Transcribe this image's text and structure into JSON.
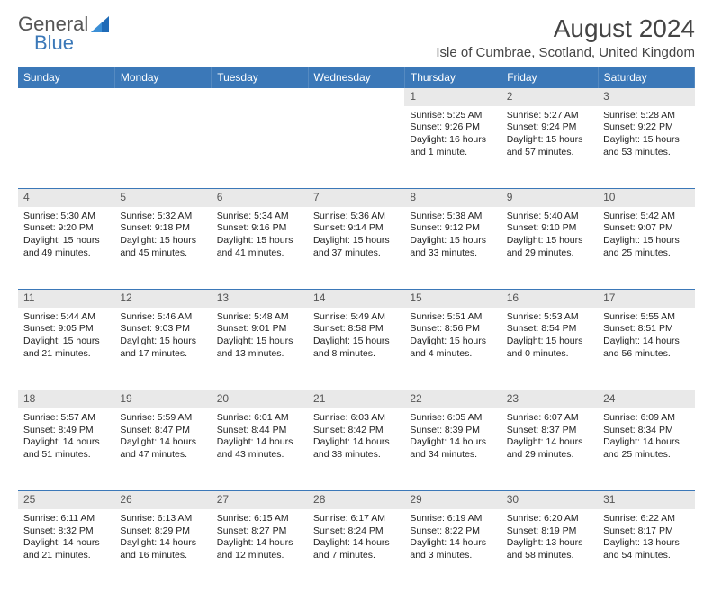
{
  "brand": {
    "name_top": "General",
    "name_bottom": "Blue"
  },
  "title": {
    "month_year": "August 2024",
    "location": "Isle of Cumbrae, Scotland, United Kingdom"
  },
  "colors": {
    "accent": "#3b78b8",
    "header_bg": "#3b78b8",
    "header_text": "#ffffff",
    "daynum_bg": "#e9e9e9",
    "text": "#333333",
    "background": "#ffffff"
  },
  "daynames": [
    "Sunday",
    "Monday",
    "Tuesday",
    "Wednesday",
    "Thursday",
    "Friday",
    "Saturday"
  ],
  "weeks": [
    [
      null,
      null,
      null,
      null,
      {
        "n": "1",
        "sr": "Sunrise: 5:25 AM",
        "ss": "Sunset: 9:26 PM",
        "dl1": "Daylight: 16 hours",
        "dl2": "and 1 minute."
      },
      {
        "n": "2",
        "sr": "Sunrise: 5:27 AM",
        "ss": "Sunset: 9:24 PM",
        "dl1": "Daylight: 15 hours",
        "dl2": "and 57 minutes."
      },
      {
        "n": "3",
        "sr": "Sunrise: 5:28 AM",
        "ss": "Sunset: 9:22 PM",
        "dl1": "Daylight: 15 hours",
        "dl2": "and 53 minutes."
      }
    ],
    [
      {
        "n": "4",
        "sr": "Sunrise: 5:30 AM",
        "ss": "Sunset: 9:20 PM",
        "dl1": "Daylight: 15 hours",
        "dl2": "and 49 minutes."
      },
      {
        "n": "5",
        "sr": "Sunrise: 5:32 AM",
        "ss": "Sunset: 9:18 PM",
        "dl1": "Daylight: 15 hours",
        "dl2": "and 45 minutes."
      },
      {
        "n": "6",
        "sr": "Sunrise: 5:34 AM",
        "ss": "Sunset: 9:16 PM",
        "dl1": "Daylight: 15 hours",
        "dl2": "and 41 minutes."
      },
      {
        "n": "7",
        "sr": "Sunrise: 5:36 AM",
        "ss": "Sunset: 9:14 PM",
        "dl1": "Daylight: 15 hours",
        "dl2": "and 37 minutes."
      },
      {
        "n": "8",
        "sr": "Sunrise: 5:38 AM",
        "ss": "Sunset: 9:12 PM",
        "dl1": "Daylight: 15 hours",
        "dl2": "and 33 minutes."
      },
      {
        "n": "9",
        "sr": "Sunrise: 5:40 AM",
        "ss": "Sunset: 9:10 PM",
        "dl1": "Daylight: 15 hours",
        "dl2": "and 29 minutes."
      },
      {
        "n": "10",
        "sr": "Sunrise: 5:42 AM",
        "ss": "Sunset: 9:07 PM",
        "dl1": "Daylight: 15 hours",
        "dl2": "and 25 minutes."
      }
    ],
    [
      {
        "n": "11",
        "sr": "Sunrise: 5:44 AM",
        "ss": "Sunset: 9:05 PM",
        "dl1": "Daylight: 15 hours",
        "dl2": "and 21 minutes."
      },
      {
        "n": "12",
        "sr": "Sunrise: 5:46 AM",
        "ss": "Sunset: 9:03 PM",
        "dl1": "Daylight: 15 hours",
        "dl2": "and 17 minutes."
      },
      {
        "n": "13",
        "sr": "Sunrise: 5:48 AM",
        "ss": "Sunset: 9:01 PM",
        "dl1": "Daylight: 15 hours",
        "dl2": "and 13 minutes."
      },
      {
        "n": "14",
        "sr": "Sunrise: 5:49 AM",
        "ss": "Sunset: 8:58 PM",
        "dl1": "Daylight: 15 hours",
        "dl2": "and 8 minutes."
      },
      {
        "n": "15",
        "sr": "Sunrise: 5:51 AM",
        "ss": "Sunset: 8:56 PM",
        "dl1": "Daylight: 15 hours",
        "dl2": "and 4 minutes."
      },
      {
        "n": "16",
        "sr": "Sunrise: 5:53 AM",
        "ss": "Sunset: 8:54 PM",
        "dl1": "Daylight: 15 hours",
        "dl2": "and 0 minutes."
      },
      {
        "n": "17",
        "sr": "Sunrise: 5:55 AM",
        "ss": "Sunset: 8:51 PM",
        "dl1": "Daylight: 14 hours",
        "dl2": "and 56 minutes."
      }
    ],
    [
      {
        "n": "18",
        "sr": "Sunrise: 5:57 AM",
        "ss": "Sunset: 8:49 PM",
        "dl1": "Daylight: 14 hours",
        "dl2": "and 51 minutes."
      },
      {
        "n": "19",
        "sr": "Sunrise: 5:59 AM",
        "ss": "Sunset: 8:47 PM",
        "dl1": "Daylight: 14 hours",
        "dl2": "and 47 minutes."
      },
      {
        "n": "20",
        "sr": "Sunrise: 6:01 AM",
        "ss": "Sunset: 8:44 PM",
        "dl1": "Daylight: 14 hours",
        "dl2": "and 43 minutes."
      },
      {
        "n": "21",
        "sr": "Sunrise: 6:03 AM",
        "ss": "Sunset: 8:42 PM",
        "dl1": "Daylight: 14 hours",
        "dl2": "and 38 minutes."
      },
      {
        "n": "22",
        "sr": "Sunrise: 6:05 AM",
        "ss": "Sunset: 8:39 PM",
        "dl1": "Daylight: 14 hours",
        "dl2": "and 34 minutes."
      },
      {
        "n": "23",
        "sr": "Sunrise: 6:07 AM",
        "ss": "Sunset: 8:37 PM",
        "dl1": "Daylight: 14 hours",
        "dl2": "and 29 minutes."
      },
      {
        "n": "24",
        "sr": "Sunrise: 6:09 AM",
        "ss": "Sunset: 8:34 PM",
        "dl1": "Daylight: 14 hours",
        "dl2": "and 25 minutes."
      }
    ],
    [
      {
        "n": "25",
        "sr": "Sunrise: 6:11 AM",
        "ss": "Sunset: 8:32 PM",
        "dl1": "Daylight: 14 hours",
        "dl2": "and 21 minutes."
      },
      {
        "n": "26",
        "sr": "Sunrise: 6:13 AM",
        "ss": "Sunset: 8:29 PM",
        "dl1": "Daylight: 14 hours",
        "dl2": "and 16 minutes."
      },
      {
        "n": "27",
        "sr": "Sunrise: 6:15 AM",
        "ss": "Sunset: 8:27 PM",
        "dl1": "Daylight: 14 hours",
        "dl2": "and 12 minutes."
      },
      {
        "n": "28",
        "sr": "Sunrise: 6:17 AM",
        "ss": "Sunset: 8:24 PM",
        "dl1": "Daylight: 14 hours",
        "dl2": "and 7 minutes."
      },
      {
        "n": "29",
        "sr": "Sunrise: 6:19 AM",
        "ss": "Sunset: 8:22 PM",
        "dl1": "Daylight: 14 hours",
        "dl2": "and 3 minutes."
      },
      {
        "n": "30",
        "sr": "Sunrise: 6:20 AM",
        "ss": "Sunset: 8:19 PM",
        "dl1": "Daylight: 13 hours",
        "dl2": "and 58 minutes."
      },
      {
        "n": "31",
        "sr": "Sunrise: 6:22 AM",
        "ss": "Sunset: 8:17 PM",
        "dl1": "Daylight: 13 hours",
        "dl2": "and 54 minutes."
      }
    ]
  ]
}
